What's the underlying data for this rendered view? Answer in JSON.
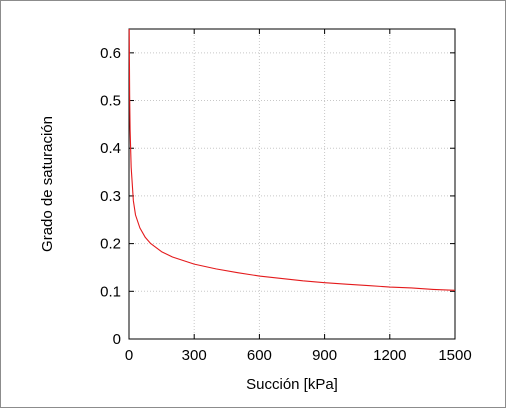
{
  "chart_data": {
    "type": "line",
    "title": "",
    "xlabel": "Succión [kPa]",
    "ylabel": "Grado de saturación",
    "xlim": [
      0,
      1500
    ],
    "ylim": [
      0,
      0.65
    ],
    "x_ticks": [
      0,
      300,
      600,
      900,
      1200,
      1500
    ],
    "x_tick_labels": [
      "0",
      "300",
      "600",
      "900",
      "1200",
      "1500"
    ],
    "y_ticks": [
      0,
      0.1,
      0.2,
      0.3,
      0.4,
      0.5,
      0.6
    ],
    "y_tick_labels": [
      "0",
      "0.1",
      "0.2",
      "0.3",
      "0.4",
      "0.5",
      "0.6"
    ],
    "grid": true,
    "series": [
      {
        "color": "#e41a1c",
        "x": [
          1,
          2,
          3,
          5,
          10,
          20,
          30,
          50,
          75,
          100,
          150,
          200,
          300,
          400,
          500,
          600,
          700,
          800,
          900,
          1000,
          1100,
          1200,
          1300,
          1400,
          1500
        ],
        "y": [
          0.65,
          0.58,
          0.51,
          0.44,
          0.36,
          0.29,
          0.26,
          0.233,
          0.213,
          0.2,
          0.183,
          0.172,
          0.157,
          0.147,
          0.139,
          0.132,
          0.127,
          0.122,
          0.118,
          0.115,
          0.112,
          0.109,
          0.107,
          0.104,
          0.102
        ]
      }
    ]
  }
}
